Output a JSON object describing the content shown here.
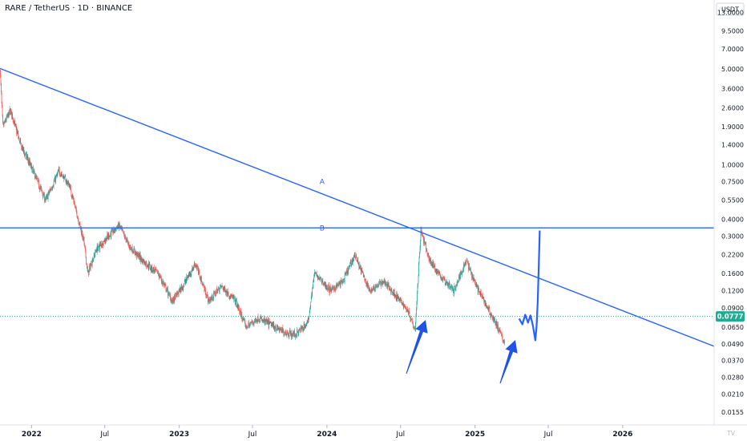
{
  "header": {
    "title": "RARE / TetherUS · 1D · BINANCE"
  },
  "axis": {
    "currency": "USDT",
    "corner_label": "TV"
  },
  "colors": {
    "up": "#26a69a",
    "down": "#ef5350",
    "trendline": "#2962ff",
    "price_tag": "#22ab94",
    "arrow": "#1e53e5",
    "text": "#131722"
  },
  "chart_data": {
    "type": "candlestick",
    "y_scale": "log",
    "ylim": [
      0.0125,
      16
    ],
    "ytick_labels": [
      "13.0000",
      "9.5000",
      "7.0000",
      "5.0000",
      "3.6000",
      "2.6000",
      "1.9000",
      "1.4000",
      "1.0000",
      "0.7500",
      "0.5500",
      "0.4000",
      "0.3000",
      "0.2200",
      "0.1600",
      "0.1200",
      "0.0900",
      "0.0650",
      "0.0490",
      "0.0370",
      "0.0280",
      "0.0210",
      "0.0155"
    ],
    "xtick_labels": [
      {
        "label": "2022",
        "year": true
      },
      {
        "label": "Jul",
        "year": false
      },
      {
        "label": "2023",
        "year": true
      },
      {
        "label": "Jul",
        "year": false
      },
      {
        "label": "2024",
        "year": true
      },
      {
        "label": "Jul",
        "year": false
      },
      {
        "label": "2025",
        "year": true
      },
      {
        "label": "Jul",
        "year": false
      },
      {
        "label": "2026",
        "year": true
      }
    ],
    "x_range": [
      "2021-10-15",
      "2026-08-15"
    ],
    "last_price": "0.0777",
    "price_path": [
      [
        "2021-10-15",
        5.0
      ],
      [
        "2021-10-22",
        1.9
      ],
      [
        "2021-11-10",
        2.5
      ],
      [
        "2021-12-05",
        1.4
      ],
      [
        "2022-01-01",
        0.95
      ],
      [
        "2022-02-05",
        0.55
      ],
      [
        "2022-03-10",
        0.9
      ],
      [
        "2022-04-05",
        0.7
      ],
      [
        "2022-05-10",
        0.28
      ],
      [
        "2022-05-20",
        0.16
      ],
      [
        "2022-06-10",
        0.24
      ],
      [
        "2022-07-10",
        0.3
      ],
      [
        "2022-08-05",
        0.36
      ],
      [
        "2022-09-01",
        0.25
      ],
      [
        "2022-10-10",
        0.19
      ],
      [
        "2022-11-10",
        0.16
      ],
      [
        "2022-12-15",
        0.1
      ],
      [
        "2023-01-10",
        0.13
      ],
      [
        "2023-02-10",
        0.19
      ],
      [
        "2023-03-15",
        0.1
      ],
      [
        "2023-04-15",
        0.13
      ],
      [
        "2023-05-20",
        0.1
      ],
      [
        "2023-06-15",
        0.065
      ],
      [
        "2023-07-15",
        0.075
      ],
      [
        "2023-08-15",
        0.068
      ],
      [
        "2023-09-15",
        0.06
      ],
      [
        "2023-10-15",
        0.057
      ],
      [
        "2023-11-15",
        0.07
      ],
      [
        "2023-12-01",
        0.16
      ],
      [
        "2024-01-10",
        0.12
      ],
      [
        "2024-02-10",
        0.14
      ],
      [
        "2024-03-10",
        0.22
      ],
      [
        "2024-04-15",
        0.12
      ],
      [
        "2024-05-20",
        0.14
      ],
      [
        "2024-06-20",
        0.11
      ],
      [
        "2024-07-20",
        0.085
      ],
      [
        "2024-08-06",
        0.063
      ],
      [
        "2024-08-20",
        0.33
      ],
      [
        "2024-09-10",
        0.2
      ],
      [
        "2024-10-10",
        0.15
      ],
      [
        "2024-11-10",
        0.12
      ],
      [
        "2024-12-10",
        0.2
      ],
      [
        "2025-01-10",
        0.12
      ],
      [
        "2025-02-10",
        0.08
      ],
      [
        "2025-03-01",
        0.062
      ],
      [
        "2025-03-15",
        0.05
      ]
    ],
    "projection_path": [
      [
        "2025-04-20",
        0.075
      ],
      [
        "2025-04-28",
        0.068
      ],
      [
        "2025-05-05",
        0.08
      ],
      [
        "2025-05-12",
        0.07
      ],
      [
        "2025-05-18",
        0.079
      ],
      [
        "2025-05-24",
        0.067
      ],
      [
        "2025-05-30",
        0.052
      ],
      [
        "2025-06-02",
        0.065
      ],
      [
        "2025-06-05",
        0.1
      ],
      [
        "2025-06-08",
        0.2
      ],
      [
        "2025-06-10",
        0.33
      ]
    ],
    "trendlines": [
      {
        "name": "A",
        "label_at": [
          "2023-12-20",
          0.72
        ],
        "points": [
          [
            "2021-10-15",
            5.05
          ],
          [
            "2026-08-15",
            0.047
          ]
        ]
      },
      {
        "name": "B",
        "label_at": [
          "2023-12-20",
          0.33
        ],
        "points": [
          [
            "2021-10-15",
            0.345
          ],
          [
            "2026-08-15",
            0.345
          ]
        ]
      }
    ]
  }
}
